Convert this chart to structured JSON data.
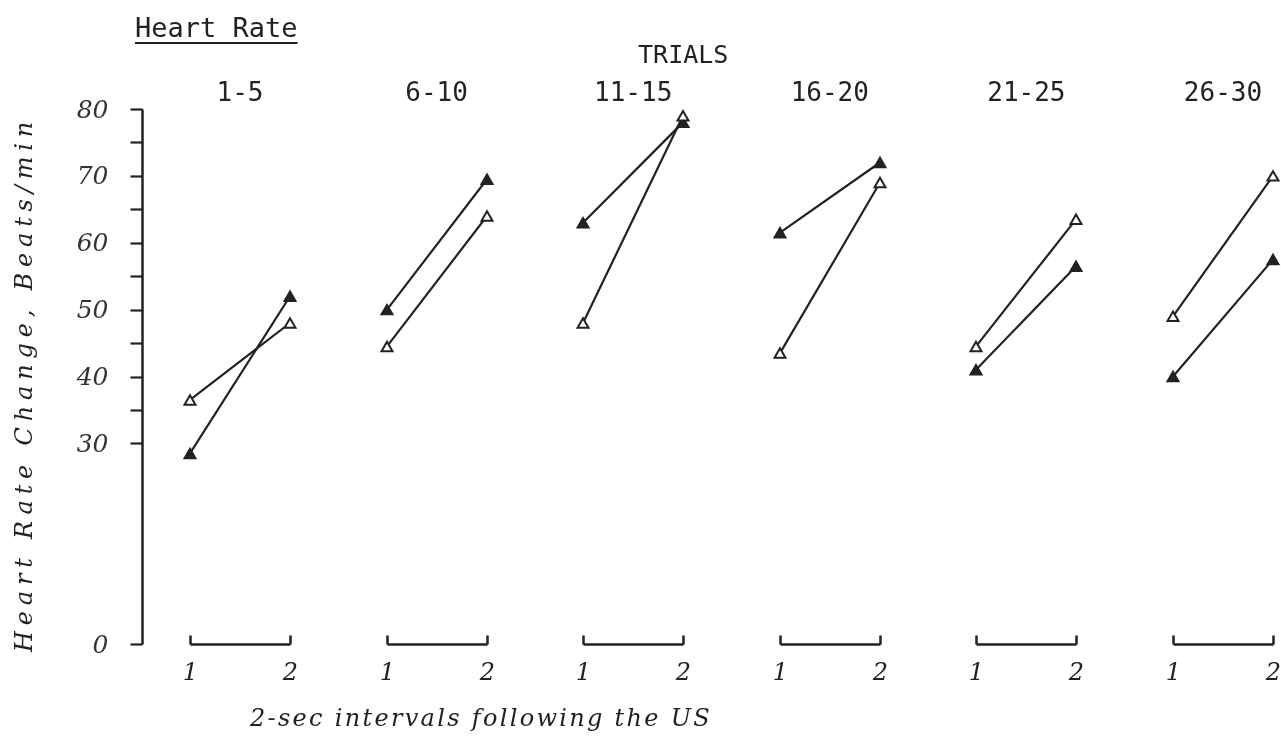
{
  "chart_data": [
    {
      "type": "line",
      "title": "1-5",
      "annotations": [
        "Heart Rate"
      ],
      "xlabel": "2-sec intervals following the US",
      "ylabel": "Heart Rate Change, Beats/min",
      "categories": [
        "1",
        "2"
      ],
      "series": [
        {
          "color": "#222222",
          "values": [
            28.5,
            52
          ]
        },
        {
          "color": "#222222",
          "colors": [
            "#ffffff",
            "#ffffff"
          ],
          "values": [
            36.5,
            48
          ]
        }
      ],
      "ylim": [
        0,
        80
      ],
      "yticks": [
        0,
        30,
        {
          "value": 35,
          "label": null
        },
        40,
        {
          "value": 45,
          "label": null
        },
        50,
        {
          "value": 55,
          "label": null
        },
        60,
        {
          "value": 65,
          "label": null
        },
        70,
        {
          "value": 75,
          "label": null
        },
        80
      ],
      "marker": "triangle"
    },
    {
      "type": "line",
      "title": "6-10",
      "categories": [
        "1",
        "2"
      ],
      "series": [
        {
          "color": "#222222",
          "values": [
            50,
            69.5
          ]
        },
        {
          "color": "#222222",
          "colors": [
            "#ffffff",
            "#ffffff"
          ],
          "values": [
            44.5,
            64
          ]
        }
      ],
      "ylim": [
        0,
        80
      ],
      "tick_labels": "x",
      "marker": "triangle"
    },
    {
      "type": "line",
      "title": "11-15",
      "annotations": [
        "TRIALS"
      ],
      "categories": [
        "1",
        "2"
      ],
      "series": [
        {
          "color": "#222222",
          "values": [
            63,
            78
          ]
        },
        {
          "color": "#222222",
          "colors": [
            "#ffffff",
            "#ffffff"
          ],
          "values": [
            48,
            79
          ]
        }
      ],
      "ylim": [
        0,
        80
      ],
      "tick_labels": "x",
      "marker": "triangle"
    },
    {
      "type": "line",
      "title": "16-20",
      "categories": [
        "1",
        "2"
      ],
      "series": [
        {
          "color": "#222222",
          "values": [
            61.5,
            72
          ]
        },
        {
          "color": "#222222",
          "colors": [
            "#ffffff",
            "#ffffff"
          ],
          "values": [
            43.5,
            69
          ]
        }
      ],
      "ylim": [
        0,
        80
      ],
      "tick_labels": "x",
      "marker": "triangle"
    },
    {
      "type": "line",
      "title": "21-25",
      "categories": [
        "1",
        "2"
      ],
      "series": [
        {
          "color": "#222222",
          "values": [
            41,
            56.5
          ]
        },
        {
          "color": "#222222",
          "colors": [
            "#ffffff",
            "#ffffff"
          ],
          "values": [
            44.5,
            63.5
          ]
        }
      ],
      "ylim": [
        0,
        80
      ],
      "tick_labels": "x",
      "marker": "triangle"
    },
    {
      "type": "line",
      "title": "26-30",
      "categories": [
        "1",
        "2"
      ],
      "series": [
        {
          "color": "#222222",
          "values": [
            40,
            57.5
          ]
        },
        {
          "color": "#222222",
          "colors": [
            "#ffffff",
            "#ffffff"
          ],
          "values": [
            49,
            70
          ]
        }
      ],
      "ylim": [
        0,
        80
      ],
      "tick_labels": "x",
      "marker": "triangle"
    }
  ]
}
